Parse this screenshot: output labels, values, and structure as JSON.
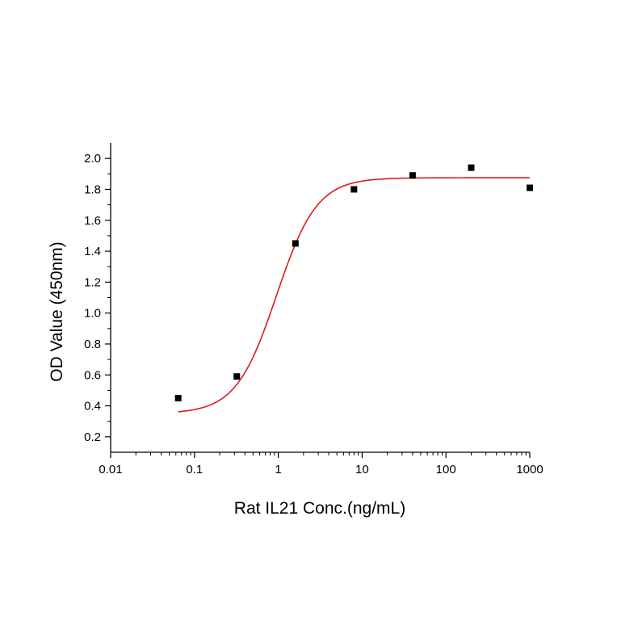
{
  "chart_data": {
    "type": "scatter",
    "title": "",
    "xlabel": "Rat IL21 Conc.(ng/mL)",
    "ylabel": "OD Value (450nm)",
    "x_scale": "log",
    "xlim": [
      0.01,
      1000
    ],
    "ylim": [
      0.1,
      2.1
    ],
    "x_ticks": [
      "0.01",
      "0.1",
      "1",
      "10",
      "100",
      "1000"
    ],
    "y_ticks": [
      "0.2",
      "0.4",
      "0.6",
      "0.8",
      "1.0",
      "1.2",
      "1.4",
      "1.6",
      "1.8",
      "2.0"
    ],
    "grid": false,
    "series": [
      {
        "type": "scatter",
        "marker": "square",
        "color": "#000000",
        "x": [
          0.064,
          0.32,
          1.6,
          8,
          40,
          200,
          1000
        ],
        "y": [
          0.45,
          0.59,
          1.45,
          1.8,
          1.89,
          1.94,
          1.81
        ]
      },
      {
        "type": "line",
        "fit": "4PL",
        "color": "#e01b1b",
        "x_range": [
          0.064,
          1000
        ],
        "params": {
          "bottom": 0.35,
          "top": 1.875,
          "ec50": 0.95,
          "hill": 1.8
        }
      }
    ]
  }
}
